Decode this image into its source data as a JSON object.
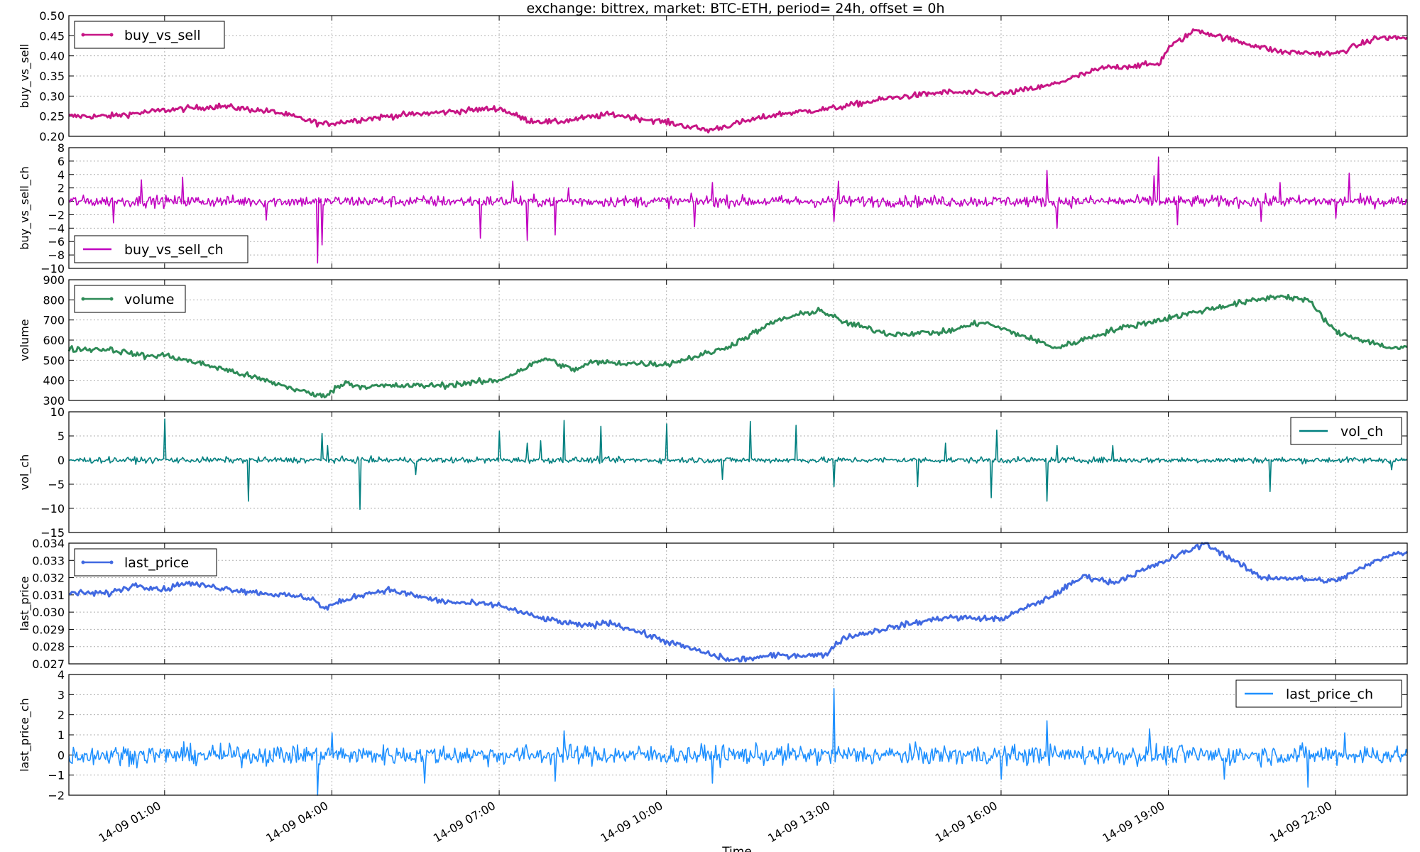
{
  "title": "exchange:  bittrex,   market: BTC-ETH,    period= 24h,  offset = 0h",
  "xlabel": "Time",
  "x_ticks": [
    "14-09 01:00",
    "14-09 04:00",
    "14-09 07:00",
    "14-09 10:00",
    "14-09 13:00",
    "14-09 16:00",
    "14-09 19:00",
    "14-09 22:00"
  ],
  "chart_data": [
    {
      "type": "line",
      "title": "exchange:  bittrex,   market: BTC-ETH,    period= 24h,  offset = 0h",
      "ylabel": "buy_vs_sell",
      "ylim": [
        0.2,
        0.5
      ],
      "yticks": [
        "0.20",
        "0.25",
        "0.30",
        "0.35",
        "0.40",
        "0.45",
        "0.50"
      ],
      "legend": {
        "label": "buy_vs_sell",
        "loc": "upper left",
        "marker": true
      },
      "color": "#c71585",
      "grid": true,
      "x": [
        "14-09 00:00",
        "14-09 01:00",
        "14-09 02:00",
        "14-09 03:00",
        "14-09 03:50",
        "14-09 05:00",
        "14-09 06:00",
        "14-09 07:00",
        "14-09 07:30",
        "14-09 08:00",
        "14-09 09:00",
        "14-09 10:00",
        "14-09 10:45",
        "14-09 11:30",
        "14-09 12:00",
        "14-09 13:00",
        "14-09 14:00",
        "14-09 15:00",
        "14-09 16:00",
        "14-09 16:50",
        "14-09 17:50",
        "14-09 18:50",
        "14-09 19:00",
        "14-09 19:30",
        "14-09 20:00",
        "14-09 21:00",
        "14-09 22:00",
        "14-09 22:45"
      ],
      "values": [
        0.25,
        0.265,
        0.275,
        0.26,
        0.23,
        0.25,
        0.26,
        0.27,
        0.24,
        0.235,
        0.255,
        0.235,
        0.215,
        0.24,
        0.255,
        0.27,
        0.295,
        0.31,
        0.305,
        0.325,
        0.37,
        0.38,
        0.42,
        0.465,
        0.445,
        0.41,
        0.405,
        0.445
      ]
    },
    {
      "type": "line",
      "ylabel": "buy_vs_sell_ch",
      "ylim": [
        -10,
        8
      ],
      "yticks": [
        "−10",
        "−8",
        "−6",
        "−4",
        "−2",
        "0",
        "2",
        "4",
        "6",
        "8"
      ],
      "legend": {
        "label": "buy_vs_sell_ch",
        "loc": "lower left",
        "marker": false
      },
      "color": "#c000c0",
      "grid": true,
      "baseline": 0,
      "noise": 0.7,
      "spikes": [
        [
          "14-09 00:05",
          -3.2
        ],
        [
          "14-09 00:35",
          3.2
        ],
        [
          "14-09 01:20",
          3.6
        ],
        [
          "14-09 02:50",
          -2.8
        ],
        [
          "14-09 03:45",
          -9.2
        ],
        [
          "14-09 03:50",
          -6.5
        ],
        [
          "14-09 06:40",
          -5.5
        ],
        [
          "14-09 07:30",
          -5.8
        ],
        [
          "14-09 07:15",
          3.0
        ],
        [
          "14-09 08:00",
          -5.0
        ],
        [
          "14-09 08:15",
          2.0
        ],
        [
          "14-09 10:30",
          -3.8
        ],
        [
          "14-09 10:50",
          2.8
        ],
        [
          "14-09 13:00",
          -3.0
        ],
        [
          "14-09 13:05",
          3.0
        ],
        [
          "14-09 16:50",
          4.6
        ],
        [
          "14-09 17:00",
          -4.0
        ],
        [
          "14-09 18:50",
          6.6
        ],
        [
          "14-09 19:10",
          -3.5
        ],
        [
          "14-09 18:45",
          3.8
        ],
        [
          "14-09 20:40",
          -3.0
        ],
        [
          "14-09 21:00",
          2.8
        ],
        [
          "14-09 22:00",
          -2.5
        ],
        [
          "14-09 22:15",
          4.2
        ]
      ]
    },
    {
      "type": "line",
      "ylabel": "volume",
      "ylim": [
        300,
        900
      ],
      "yticks": [
        "300",
        "400",
        "500",
        "600",
        "700",
        "800",
        "900"
      ],
      "legend": {
        "label": "volume",
        "loc": "upper left",
        "marker": true
      },
      "color": "#2e8b57",
      "grid": true,
      "x": [
        "14-09 00:00",
        "14-09 00:40",
        "14-09 01:00",
        "14-09 02:00",
        "14-09 02:40",
        "14-09 03:40",
        "14-09 03:50",
        "14-09 04:15",
        "14-09 04:30",
        "14-09 06:00",
        "14-09 07:00",
        "14-09 07:50",
        "14-09 08:20",
        "14-09 08:40",
        "14-09 10:00",
        "14-09 11:00",
        "14-09 11:20",
        "14-09 12:00",
        "14-09 12:45",
        "14-09 13:10",
        "14-09 14:00",
        "14-09 15:00",
        "14-09 15:40",
        "14-09 16:30",
        "14-09 17:00",
        "14-09 18:00",
        "14-09 18:40",
        "14-09 19:10",
        "14-09 20:00",
        "14-09 21:00",
        "14-09 21:30",
        "14-09 22:00",
        "14-09 23:00"
      ],
      "values": [
        555,
        520,
        525,
        460,
        410,
        330,
        320,
        390,
        370,
        375,
        400,
        510,
        450,
        490,
        480,
        555,
        600,
        700,
        750,
        690,
        630,
        640,
        690,
        610,
        560,
        650,
        690,
        720,
        770,
        820,
        800,
        640,
        560
      ]
    },
    {
      "type": "line",
      "ylabel": "vol_ch",
      "ylim": [
        -15,
        10
      ],
      "yticks": [
        "−15",
        "−10",
        "−5",
        "0",
        "5",
        "10"
      ],
      "legend": {
        "label": "vol_ch",
        "loc": "upper right",
        "marker": false
      },
      "color": "#008080",
      "grid": true,
      "baseline": 0,
      "noise": 0.5,
      "spikes": [
        [
          "14-09 01:00",
          8.5
        ],
        [
          "14-09 02:30",
          -8.5
        ],
        [
          "14-09 03:50",
          5.5
        ],
        [
          "14-09 03:55",
          3.0
        ],
        [
          "14-09 04:30",
          -10.2
        ],
        [
          "14-09 05:30",
          -3.0
        ],
        [
          "14-09 07:00",
          6.0
        ],
        [
          "14-09 07:30",
          3.5
        ],
        [
          "14-09 07:45",
          4.0
        ],
        [
          "14-09 08:10",
          8.2
        ],
        [
          "14-09 08:50",
          7.0
        ],
        [
          "14-09 10:00",
          7.5
        ],
        [
          "14-09 11:00",
          -4.0
        ],
        [
          "14-09 11:30",
          8.0
        ],
        [
          "14-09 12:20",
          7.2
        ],
        [
          "14-09 13:00",
          -5.5
        ],
        [
          "14-09 14:30",
          -5.5
        ],
        [
          "14-09 15:00",
          3.5
        ],
        [
          "14-09 15:50",
          -7.8
        ],
        [
          "14-09 15:55",
          6.2
        ],
        [
          "14-09 16:50",
          -8.5
        ],
        [
          "14-09 17:00",
          3.0
        ],
        [
          "14-09 18:00",
          3.0
        ],
        [
          "14-09 20:50",
          -6.5
        ],
        [
          "14-09 23:00",
          -2.0
        ]
      ]
    },
    {
      "type": "line",
      "ylabel": "last_price",
      "ylim": [
        0.027,
        0.034
      ],
      "yticks": [
        "0.027",
        "0.028",
        "0.029",
        "0.030",
        "0.031",
        "0.032",
        "0.033",
        "0.034"
      ],
      "legend": {
        "label": "last_price",
        "loc": "upper left",
        "marker": true
      },
      "color": "#4169e1",
      "grid": true,
      "x": [
        "14-09 00:00",
        "14-09 00:30",
        "14-09 01:00",
        "14-09 01:20",
        "14-09 02:30",
        "14-09 03:40",
        "14-09 03:50",
        "14-09 04:30",
        "14-09 05:00",
        "14-09 06:00",
        "14-09 07:00",
        "14-09 07:40",
        "14-09 08:30",
        "14-09 09:00",
        "14-09 10:00",
        "14-09 10:50",
        "14-09 11:10",
        "14-09 12:00",
        "14-09 12:50",
        "14-09 13:10",
        "14-09 14:00",
        "14-09 15:00",
        "14-09 16:00",
        "14-09 16:50",
        "14-09 17:30",
        "14-09 18:00",
        "14-09 18:50",
        "14-09 19:40",
        "14-09 20:40",
        "14-09 21:00",
        "14-09 22:00",
        "14-09 23:00"
      ],
      "values": [
        0.0311,
        0.0316,
        0.0313,
        0.0317,
        0.0312,
        0.0308,
        0.0302,
        0.031,
        0.0313,
        0.0306,
        0.0304,
        0.0297,
        0.0292,
        0.0294,
        0.0283,
        0.0275,
        0.0272,
        0.0275,
        0.0275,
        0.0285,
        0.0291,
        0.0297,
        0.0296,
        0.0308,
        0.0321,
        0.0317,
        0.0328,
        0.034,
        0.032,
        0.032,
        0.0318,
        0.0334
      ]
    },
    {
      "type": "line",
      "ylabel": "last_price_ch",
      "ylim": [
        -2,
        4
      ],
      "yticks": [
        "−2",
        "−1",
        "0",
        "1",
        "2",
        "3",
        "4"
      ],
      "legend": {
        "label": "last_price_ch",
        "loc": "upper right",
        "marker": false
      },
      "color": "#1e90ff",
      "grid": true,
      "baseline": 0,
      "noise": 0.4,
      "spikes": [
        [
          "14-09 03:45",
          -2.0
        ],
        [
          "14-09 04:00",
          1.1
        ],
        [
          "14-09 05:40",
          -1.4
        ],
        [
          "14-09 08:10",
          1.2
        ],
        [
          "14-09 08:00",
          -1.3
        ],
        [
          "14-09 10:50",
          -1.4
        ],
        [
          "14-09 13:00",
          3.3
        ],
        [
          "14-09 16:00",
          -1.2
        ],
        [
          "14-09 16:50",
          1.7
        ],
        [
          "14-09 18:40",
          1.3
        ],
        [
          "14-09 20:00",
          -1.2
        ],
        [
          "14-09 21:30",
          -1.6
        ],
        [
          "14-09 22:10",
          1.1
        ]
      ]
    }
  ]
}
